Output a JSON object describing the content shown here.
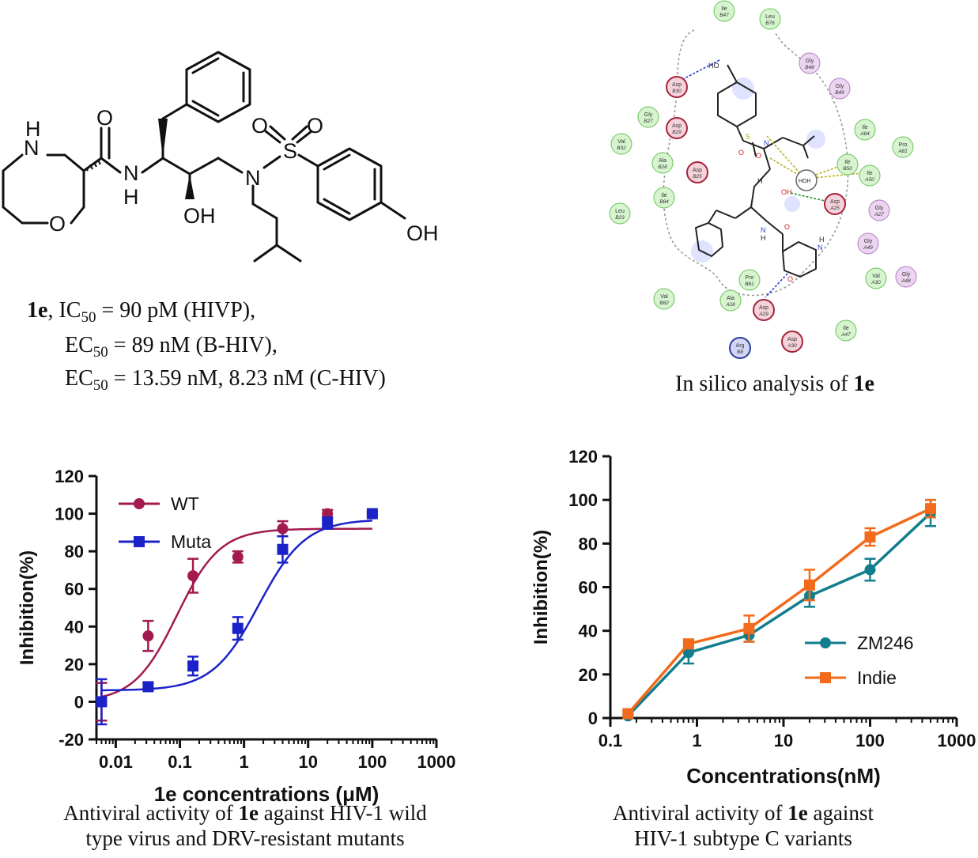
{
  "compound": {
    "name": "1e",
    "structure_labels": {
      "nh": "N",
      "h": "H",
      "nh_amide": "N",
      "h_amide": "H",
      "o_ring": "O",
      "o_carbonyl": "O",
      "oh": "OH",
      "n_sulfonamide": "N",
      "s": "S",
      "o1": "O",
      "o2": "O",
      "oh_phenol": "OH"
    },
    "metrics": [
      {
        "pre": "1e",
        "sep": ", ",
        "label": "IC",
        "sub": "50",
        "value": " = 90 pM (HIVP),"
      },
      {
        "pre": "",
        "sep": "",
        "label": "EC",
        "sub": "50",
        "value": " = 89 nM (B-HIV),"
      },
      {
        "pre": "",
        "sep": "",
        "label": "EC",
        "sub": "50",
        "value": " = 13.59 nM, 8.23 nM (C-HIV)"
      }
    ]
  },
  "silico": {
    "caption_prefix": "In silico analysis of ",
    "caption_bold": "1e",
    "residues": [
      {
        "name": "Ile",
        "id": "B47",
        "type": "green"
      },
      {
        "name": "Leu",
        "id": "B76",
        "type": "green"
      },
      {
        "name": "Gly",
        "id": "B48",
        "type": "purple"
      },
      {
        "name": "Asp",
        "id": "B30",
        "type": "red"
      },
      {
        "name": "Gly",
        "id": "B49",
        "type": "purple"
      },
      {
        "name": "Gly",
        "id": "B27",
        "type": "green"
      },
      {
        "name": "Asp",
        "id": "B29",
        "type": "red"
      },
      {
        "name": "Ile",
        "id": "A84",
        "type": "green"
      },
      {
        "name": "Val",
        "id": "B32",
        "type": "green"
      },
      {
        "name": "Pro",
        "id": "A81",
        "type": "green"
      },
      {
        "name": "Ala",
        "id": "B28",
        "type": "green"
      },
      {
        "name": "Asp",
        "id": "B25",
        "type": "red"
      },
      {
        "name": "Ile",
        "id": "B50",
        "type": "green"
      },
      {
        "name": "Ile",
        "id": "A50",
        "type": "green"
      },
      {
        "name": "Ile",
        "id": "B84",
        "type": "green"
      },
      {
        "name": "Asp",
        "id": "A25",
        "type": "red"
      },
      {
        "name": "Leu",
        "id": "B23",
        "type": "green"
      },
      {
        "name": "Gly",
        "id": "A27",
        "type": "purple"
      },
      {
        "name": "Gly",
        "id": "A49",
        "type": "purple"
      },
      {
        "name": "Pro",
        "id": "B81",
        "type": "green"
      },
      {
        "name": "Val",
        "id": "A30",
        "type": "green"
      },
      {
        "name": "Gly",
        "id": "A48",
        "type": "purple"
      },
      {
        "name": "Val",
        "id": "B82",
        "type": "green"
      },
      {
        "name": "Ala",
        "id": "A28",
        "type": "green"
      },
      {
        "name": "Asp",
        "id": "A29",
        "type": "red"
      },
      {
        "name": "Ile",
        "id": "A47",
        "type": "green"
      },
      {
        "name": "Arg",
        "id": "B8",
        "type": "blue"
      },
      {
        "name": "Asp",
        "id": "A30",
        "type": "red"
      }
    ],
    "ligand_labels": {
      "ho": "HO",
      "o1": "O",
      "o2": "O",
      "n1": "N",
      "s": "S",
      "water": "HOH",
      "oh": "OH",
      "h": "H",
      "nh": "N",
      "nh_h": "H",
      "o_c": "O",
      "nh_ring": "N",
      "nh_ring_h": "H",
      "o_ring": "O"
    }
  },
  "chart_data": [
    {
      "type": "scatter",
      "x_scale": "log",
      "xlabel": "1e concentrations (μM)",
      "ylabel": "Inhibition(%)",
      "ylim": [
        -20,
        120
      ],
      "xlim": [
        0.005,
        1000
      ],
      "yticks": [
        "-20",
        "0",
        "20",
        "40",
        "60",
        "80",
        "100",
        "120"
      ],
      "xticks": [
        "0.01",
        "0.1",
        "1",
        "10",
        "100",
        "1000"
      ],
      "legend_position": "top-left",
      "series": [
        {
          "name": "WT",
          "color": "#A21A4E",
          "marker": "circle",
          "x": [
            0.006,
            0.032,
            0.16,
            0.8,
            4,
            20,
            100
          ],
          "y": [
            0,
            35,
            67,
            77,
            92,
            100,
            100
          ],
          "err": [
            10,
            8,
            9,
            3,
            4,
            2,
            1
          ],
          "fit": {
            "bottom": 0,
            "top": 92,
            "ec50": 0.09,
            "hill": 1.3
          }
        },
        {
          "name": "Muta",
          "color": "#1B22C8",
          "marker": "square",
          "x": [
            0.006,
            0.032,
            0.16,
            0.8,
            4,
            20,
            100
          ],
          "y": [
            0,
            8,
            19,
            39,
            81,
            95,
            100
          ],
          "err": [
            12,
            2,
            5,
            6,
            7,
            3,
            1
          ],
          "fit": {
            "bottom": 6,
            "top": 97,
            "ec50": 1.7,
            "hill": 1.2
          }
        }
      ],
      "caption_lines": [
        {
          "pre": "Antiviral activity of ",
          "bold": "1e",
          "post": " against HIV-1 wild"
        },
        {
          "pre": "type virus and DRV-resistant mutants",
          "bold": "",
          "post": ""
        }
      ]
    },
    {
      "type": "line",
      "x_scale": "log",
      "xlabel": "Concentrations(nM)",
      "ylabel": "Inhibition(%)",
      "ylim": [
        0,
        120
      ],
      "xlim": [
        0.1,
        1000
      ],
      "yticks": [
        "0",
        "20",
        "40",
        "60",
        "80",
        "100",
        "120"
      ],
      "xticks": [
        "0.1",
        "1",
        "10",
        "100",
        "1000"
      ],
      "legend_position": "bottom-right",
      "series": [
        {
          "name": "ZM246",
          "color": "#127D8D",
          "marker": "circle",
          "x": [
            0.16,
            0.8,
            4,
            20,
            100,
            500
          ],
          "y": [
            1,
            30,
            38,
            56,
            68,
            94
          ],
          "err": [
            1,
            5,
            3,
            5,
            5,
            6
          ]
        },
        {
          "name": "Indie",
          "color": "#F26A1B",
          "marker": "square",
          "x": [
            0.16,
            0.8,
            4,
            20,
            100,
            500
          ],
          "y": [
            2,
            34,
            41,
            61,
            83,
            96
          ],
          "err": [
            1,
            2,
            6,
            7,
            4,
            4
          ]
        }
      ],
      "caption_lines": [
        {
          "pre": "Antiviral activity of ",
          "bold": "1e",
          "post": " against"
        },
        {
          "pre": "HIV-1 subtype C variants",
          "bold": "",
          "post": ""
        }
      ]
    }
  ]
}
